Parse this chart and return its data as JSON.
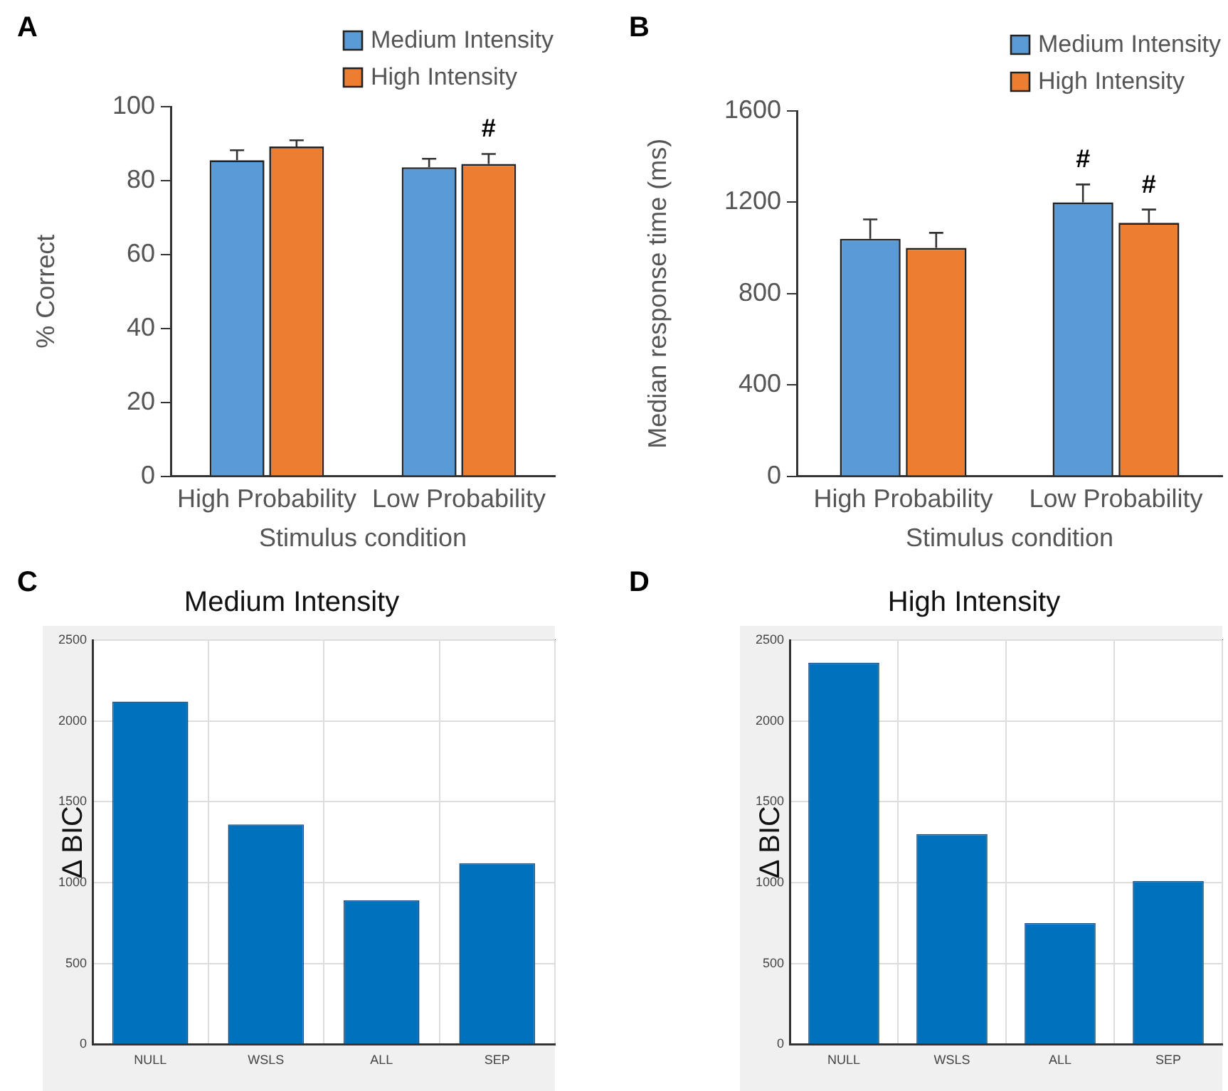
{
  "chart_data": [
    {
      "type": "bar",
      "annotations": [
        "A",
        "#"
      ],
      "xlabel": "Stimulus condition",
      "ylabel": "% Correct",
      "categories": [
        "High Probability",
        "Low Probability"
      ],
      "series": [
        {
          "name": "Medium Intensity",
          "color": "#5b9bd5",
          "values": [
            85.5,
            83.6
          ],
          "errors": [
            [
              85.5,
              88.2
            ],
            [
              83.6,
              85.9
            ]
          ]
        },
        {
          "name": "High Intensity",
          "color": "#ed7d31",
          "values": [
            89.2,
            84.5
          ],
          "errors": [
            [
              89.2,
              90.9
            ],
            [
              84.5,
              87.2
            ]
          ]
        }
      ],
      "ylim": [
        0,
        100
      ],
      "yticks": [
        0,
        20,
        40,
        60,
        80,
        100
      ],
      "legend": "top right"
    },
    {
      "type": "bar",
      "annotations": [
        "B",
        "#",
        "#"
      ],
      "xlabel": "Stimulus condition",
      "ylabel": "Median response time (ms)",
      "categories": [
        "High Probability",
        "Low Probability"
      ],
      "series": [
        {
          "name": "Medium Intensity",
          "color": "#5b9bd5",
          "values": [
            1040,
            1200
          ],
          "errors": [
            [
              1040,
              1125
            ],
            [
              1200,
              1278
            ]
          ]
        },
        {
          "name": "High Intensity",
          "color": "#ed7d31",
          "values": [
            1000,
            1110
          ],
          "errors": [
            [
              1000,
              1066
            ],
            [
              1110,
              1168
            ]
          ]
        }
      ],
      "ylim": [
        0,
        1600
      ],
      "yticks": [
        0,
        400,
        800,
        1200,
        1600
      ],
      "legend": "top right"
    },
    {
      "type": "bar",
      "title": "Medium Intensity",
      "annotations": [
        "C"
      ],
      "ylabel": "Δ BIC",
      "categories": [
        "NULL",
        "WSLS",
        "ALL",
        "SEP"
      ],
      "values": [
        2120,
        1360,
        890,
        1120
      ],
      "color": "#0072bd",
      "ylim": [
        0,
        2500
      ],
      "yticks": [
        0,
        500,
        1000,
        1500,
        2000,
        2500
      ],
      "grid": true
    },
    {
      "type": "bar",
      "title": "High Intensity",
      "annotations": [
        "D"
      ],
      "ylabel": "Δ BIC",
      "categories": [
        "NULL",
        "WSLS",
        "ALL",
        "SEP"
      ],
      "values": [
        2360,
        1300,
        750,
        1010
      ],
      "color": "#0072bd",
      "ylim": [
        0,
        2500
      ],
      "yticks": [
        0,
        500,
        1000,
        1500,
        2000,
        2500
      ],
      "grid": true
    }
  ]
}
